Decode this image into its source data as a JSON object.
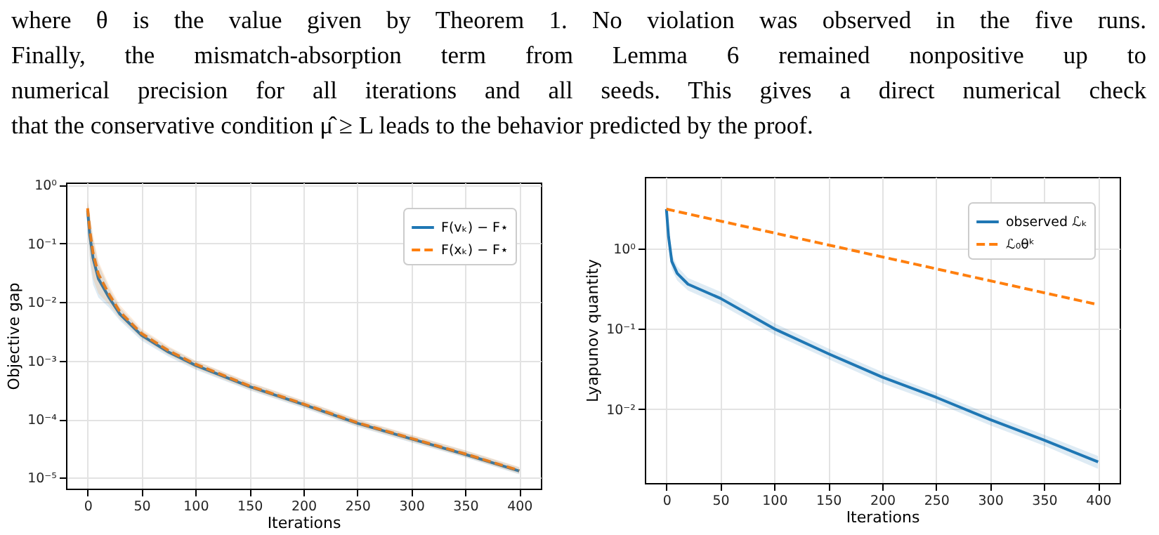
{
  "chart_data": [
    {
      "type": "line",
      "xlabel": "Iterations",
      "ylabel": "Objective gap",
      "log": "y",
      "grid": true,
      "legend": "top right",
      "annotations": [
        "where θ is the value given by Theorem 1. No violation was observed in the five runs.",
        "Finally, the mismatch-absorption term from Lemma 6 remained nonpositive up to",
        "numerical precision for all iterations and all seeds. This gives a direct numerical check",
        "that the conservative condition μ̂ ≥ L leads to the behavior predicted by the proof."
      ],
      "xlim": [
        -20,
        420
      ],
      "xticks": [
        0,
        50,
        100,
        150,
        200,
        250,
        300,
        350,
        400
      ],
      "ylim": [
        6.5e-06,
        1.1
      ],
      "yticks": [
        {
          "value": 1e-05,
          "label": "10⁻⁵"
        },
        {
          "value": 0.0001,
          "label": "10⁻⁴"
        },
        {
          "value": 0.001,
          "label": "10⁻³"
        },
        {
          "value": 0.01,
          "label": "10⁻²"
        },
        {
          "value": 0.1,
          "label": "10⁻¹"
        },
        {
          "value": 1,
          "label": "10⁰"
        }
      ],
      "x": [
        0,
        2,
        5,
        10,
        20,
        30,
        50,
        75,
        100,
        150,
        200,
        250,
        300,
        350,
        400
      ],
      "series": [
        {
          "name": "F(vₖ) − F⋆",
          "color": "#1f77b4",
          "line_style": "solid",
          "values": [
            0.37,
            0.14,
            0.057,
            0.025,
            0.0118,
            0.0062,
            0.0027,
            0.0014,
            0.00083,
            0.00036,
            0.000178,
            8.5e-05,
            4.6e-05,
            2.5e-05,
            1.3e-05
          ],
          "lower": [
            0.2,
            0.05,
            0.02,
            0.012,
            0.008,
            0.0048,
            0.0022,
            0.00117,
            0.0007,
            0.00031,
            0.000155,
            7.4e-05,
            4e-05,
            2.2e-05,
            1.14e-05
          ],
          "upper": [
            0.5,
            0.3,
            0.12,
            0.045,
            0.017,
            0.008,
            0.0033,
            0.00168,
            0.00098,
            0.00042,
            0.000205,
            9.8e-05,
            5.3e-05,
            2.9e-05,
            1.5e-05
          ]
        },
        {
          "name": "F(xₖ) − F⋆",
          "color": "#ff7f0e",
          "line_style": "dashed",
          "values": [
            0.4,
            0.17,
            0.07,
            0.03,
            0.0135,
            0.0068,
            0.0029,
            0.00148,
            0.00087,
            0.00037,
            0.000182,
            8.7e-05,
            4.7e-05,
            2.55e-05,
            1.33e-05
          ],
          "lower": [
            0.22,
            0.06,
            0.025,
            0.014,
            0.009,
            0.0052,
            0.0024,
            0.00124,
            0.00073,
            0.00032,
            0.00016,
            7.6e-05,
            4.1e-05,
            2.25e-05,
            1.17e-05
          ],
          "upper": [
            0.55,
            0.33,
            0.14,
            0.05,
            0.019,
            0.0088,
            0.0035,
            0.00175,
            0.001,
            0.00043,
            0.00021,
            0.0001,
            5.4e-05,
            2.95e-05,
            1.53e-05
          ]
        }
      ]
    },
    {
      "type": "line",
      "xlabel": "Iterations",
      "ylabel": "Lyapunov quantity",
      "log": "y",
      "grid": true,
      "legend": "top right",
      "xlim": [
        -20,
        420
      ],
      "xticks": [
        0,
        50,
        100,
        150,
        200,
        250,
        300,
        350,
        400
      ],
      "ylim": [
        0.0012,
        7.8
      ],
      "yticks": [
        {
          "value": 0.01,
          "label": "10⁻²"
        },
        {
          "value": 0.1,
          "label": "10⁻¹"
        },
        {
          "value": 1,
          "label": "10⁰"
        }
      ],
      "series": [
        {
          "name": "observed ℒₖ",
          "color": "#1f77b4",
          "line_style": "solid",
          "x": [
            0,
            2,
            5,
            10,
            20,
            50,
            100,
            150,
            200,
            250,
            300,
            350,
            400
          ],
          "values": [
            3.1,
            1.4,
            0.69,
            0.49,
            0.36,
            0.24,
            0.1,
            0.049,
            0.025,
            0.014,
            0.0074,
            0.0041,
            0.0022
          ],
          "lower": [
            2.6,
            1.0,
            0.55,
            0.4,
            0.3,
            0.2,
            0.085,
            0.042,
            0.021,
            0.012,
            0.0063,
            0.0035,
            0.0018
          ],
          "upper": [
            3.3,
            1.7,
            0.85,
            0.6,
            0.43,
            0.29,
            0.118,
            0.057,
            0.029,
            0.016,
            0.0086,
            0.0048,
            0.0026
          ]
        },
        {
          "name": "ℒ₀θᵏ",
          "color": "#ff7f0e",
          "line_style": "dashed",
          "x": [
            0,
            400
          ],
          "values": [
            3.1,
            0.2
          ]
        }
      ]
    }
  ]
}
